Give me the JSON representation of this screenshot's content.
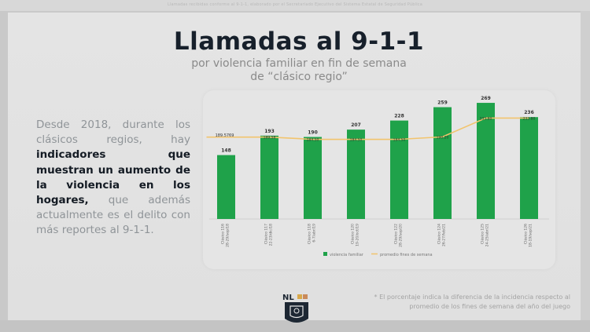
{
  "header": {
    "caption": "Llamadas recibidas conforme al 9-1-1, elaborado por el Secretariado Ejecutivo del Sistema Estatal de Seguridad Pública"
  },
  "slide": {
    "title": "Llamadas al 9-1-1",
    "subtitle_line1": "por violencia familiar en fin de semana",
    "subtitle_line2": "de “clásico regio”",
    "paragraph": {
      "intro": "Desde 2018, durante los clásicos regios, hay ",
      "bold": "indicadores que muestran un aumento de  la violencia en los hogares,",
      "outro": " que además actualmente es el delito con más reportes al 9-1-1."
    },
    "footnote_line1": "* El porcentaje indica la diferencia de la incidencia respecto al",
    "footnote_line2": "promedio de los fines de semana del año del juego",
    "logo_text": "NL"
  },
  "colors": {
    "bar": "#1fa24a",
    "line": "#f2c46d",
    "title": "#17202b",
    "body_text": "#8f9498"
  },
  "chart_data": {
    "type": "bar",
    "title": "Llamadas al 9-1-1 por violencia familiar en fin de semana de clásico regio",
    "categories": [
      "Clásico 116 28-29/sep/18",
      "Clásico 117 22-23/dic/18",
      "Clásico 118 6-7/abr/19",
      "Clásico 120 19-20/oct/19",
      "Clásico 122 28-29/sep/20",
      "Clásico 124 26-27/feb/21",
      "Clásico 125 24-25/abr/21",
      "Clásico 126 18-19/sep/21"
    ],
    "series": [
      {
        "name": "violencia familiar",
        "type": "bar",
        "values": [
          148,
          193,
          190,
          207,
          228,
          259,
          269,
          236
        ]
      },
      {
        "name": "promedio fines de semana",
        "type": "line",
        "values": [
          189.5769,
          189.5769,
          184.5,
          184.5,
          184.5,
          190.2,
          233.8,
          233.8
        ]
      }
    ],
    "data_labels": [
      "148",
      "193",
      "190",
      "207",
      "228",
      "259",
      "269",
      "236"
    ],
    "line_first_label": "189.5769",
    "xlabel": "",
    "ylabel": "",
    "ylim": [
      0,
      280
    ],
    "grid": false,
    "legend_position": "bottom"
  }
}
